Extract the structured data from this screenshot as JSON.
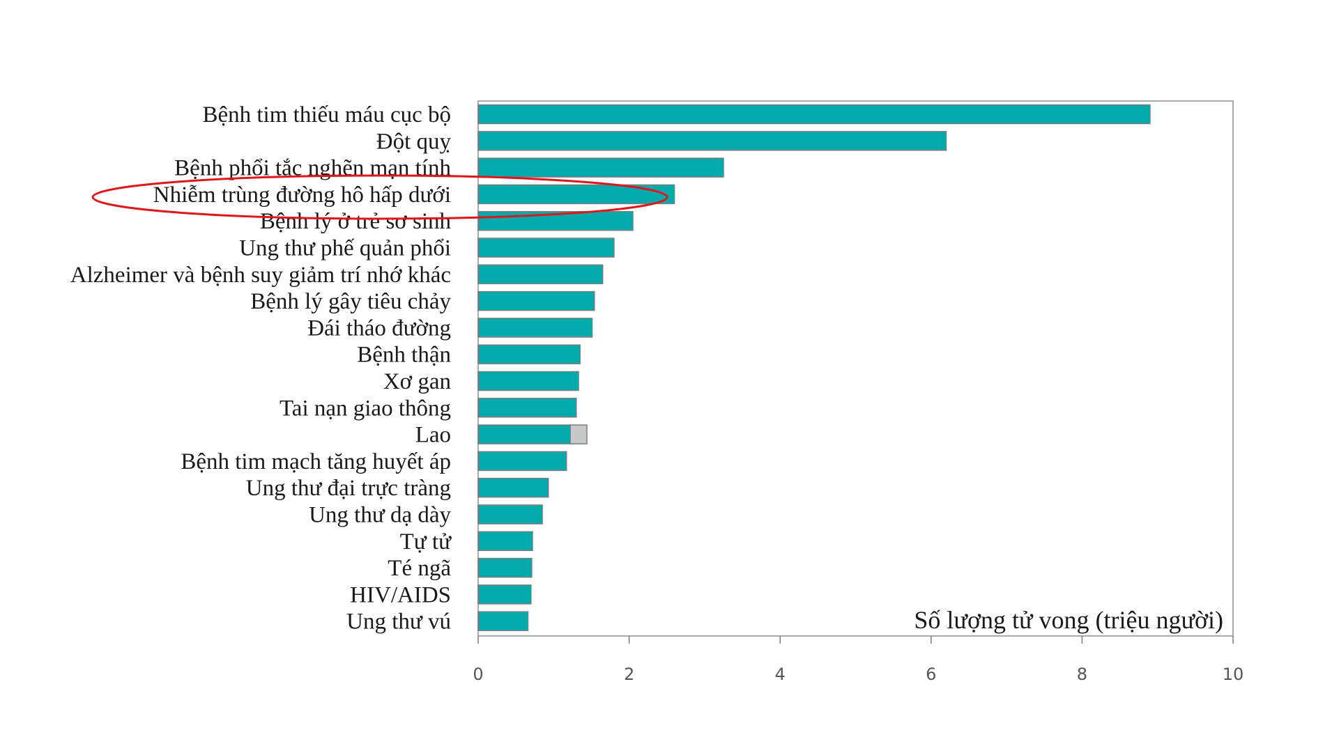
{
  "chart_data": {
    "type": "bar",
    "orientation": "horizontal",
    "categories": [
      "Bệnh tim thiếu máu cục bộ",
      "Đột quỵ",
      "Bệnh phổi tắc nghẽn mạn tính",
      "Nhiễm trùng đường hô hấp dưới",
      "Bệnh lý ở trẻ sơ sinh",
      "Ung thư phế quản phổi",
      "Alzheimer và bệnh suy giảm trí nhớ khác",
      "Bệnh lý gây tiêu chảy",
      "Đái tháo đường",
      "Bệnh thận",
      "Xơ gan",
      "Tai nạn giao thông",
      "Lao",
      "Bệnh tim mạch tăng huyết áp",
      "Ung thư đại trực tràng",
      "Ung thư dạ dày",
      "Tự tử",
      "Té ngã",
      "HIV/AIDS",
      "Ung thư vú"
    ],
    "series": [
      {
        "values": [
          8.9,
          6.2,
          3.25,
          2.6,
          2.05,
          1.8,
          1.65,
          1.54,
          1.51,
          1.35,
          1.33,
          1.3,
          1.22,
          1.17,
          0.93,
          0.85,
          0.72,
          0.71,
          0.7,
          0.66
        ],
        "color": "#02aaab"
      },
      {
        "values": [
          0,
          0,
          0,
          0,
          0,
          0,
          0,
          0,
          0,
          0,
          0,
          0,
          0.22,
          0,
          0,
          0,
          0,
          0,
          0,
          0
        ],
        "color": "#c8c8c8"
      }
    ],
    "xlabel": "Số lượng tử vong (triệu người)",
    "xlim": [
      0,
      10
    ],
    "xticks": [
      0,
      2,
      4,
      6,
      8,
      10
    ],
    "grid": false,
    "legend": "none",
    "highlight": {
      "category": "Nhiễm trùng đường hô hấp dưới",
      "shape": "ellipse",
      "color": "#e0161b"
    }
  }
}
